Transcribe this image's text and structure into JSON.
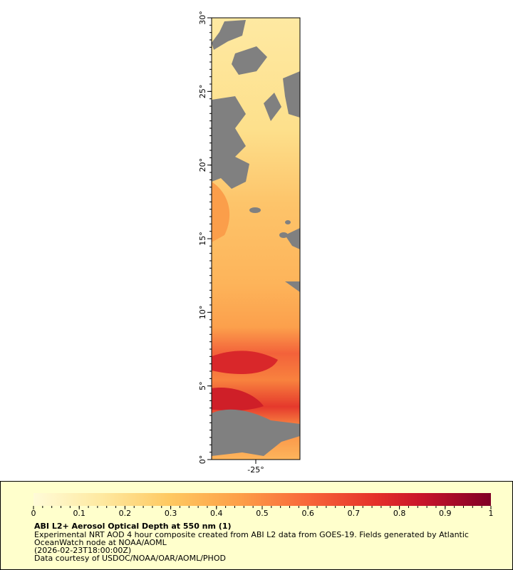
{
  "map": {
    "xlim": [
      -28,
      -22
    ],
    "ylim": [
      0,
      30
    ],
    "xticks": [
      {
        "value": -25,
        "label": "-25°"
      }
    ],
    "yticks": [
      {
        "value": 0,
        "label": "0°"
      },
      {
        "value": 5,
        "label": "5°"
      },
      {
        "value": 10,
        "label": "10°"
      },
      {
        "value": 15,
        "label": "15°"
      },
      {
        "value": 20,
        "label": "20°"
      },
      {
        "value": 25,
        "label": "25°"
      },
      {
        "value": 30,
        "label": "30°"
      }
    ]
  },
  "colorbar": {
    "lim": [
      0,
      1
    ],
    "ticks": [
      0,
      0.1,
      0.2,
      0.3,
      0.4,
      0.5,
      0.6,
      0.7,
      0.8,
      0.9,
      1
    ]
  },
  "legend": {
    "title": "ABI L2+ Aerosol Optical Depth at 550 nm (1)",
    "lines": [
      "Experimental NRT AOD 4 hour composite created from ABI L2 data from GOES-19. Fields generated by Atlantic",
      "OceanWatch node at NOAA/AOML",
      "(2026-02-23T18:00:00Z)",
      "Data courtesy of USDOC/NOAA/OAR/AOML/PHOD"
    ]
  }
}
